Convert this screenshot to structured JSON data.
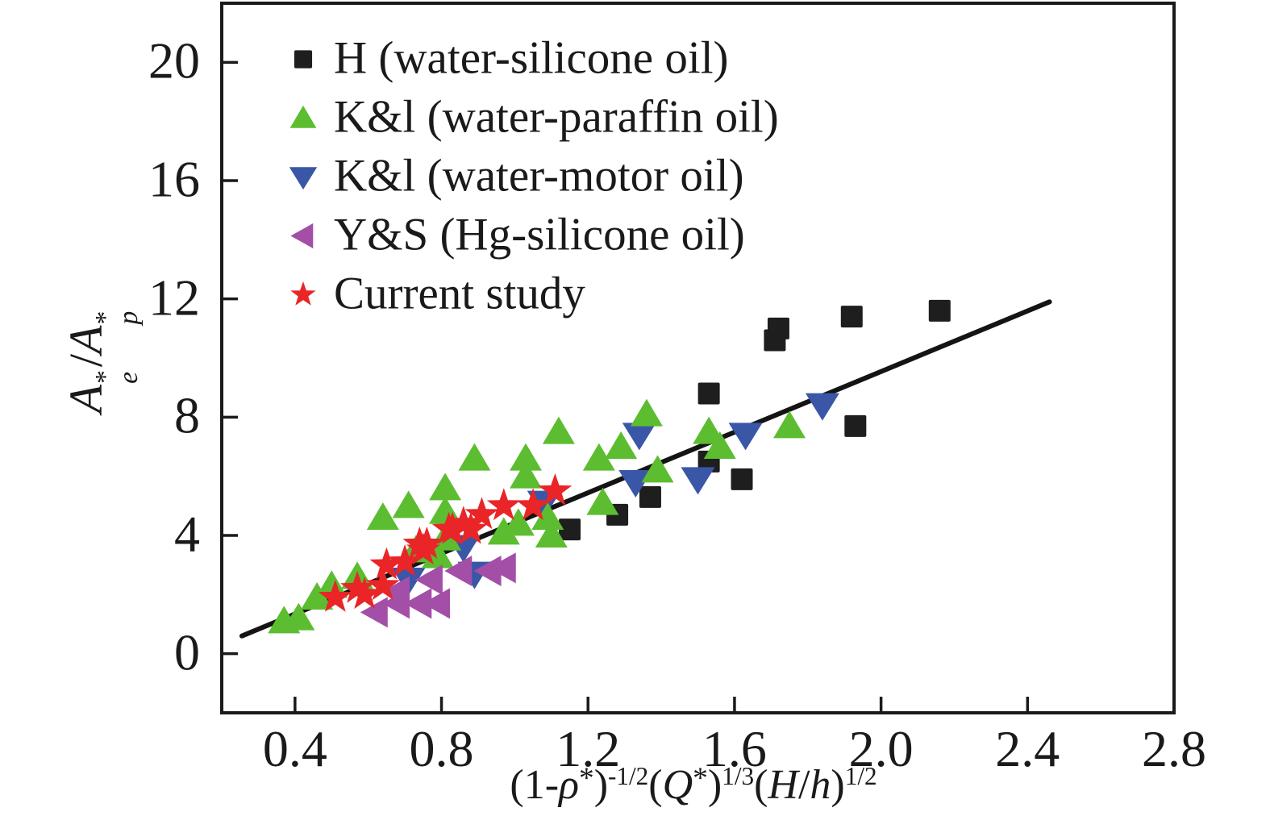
{
  "figure": {
    "background": "#ffffff",
    "axis_color": "#1a1a1a",
    "frame": true
  },
  "chart_data": {
    "type": "scatter",
    "title": "",
    "xlabel": "(1-ρ*)^(-1/2) (Q*)^(1/3) (H/h)^(1/2)",
    "ylabel": "A*e/A*p",
    "xlim": [
      0.2,
      2.8
    ],
    "ylim": [
      -2,
      22
    ],
    "grid": false,
    "legend_position": "upper-left-inside",
    "x_ticks": {
      "values": [
        0.4,
        0.8,
        1.2,
        1.6,
        2.0,
        2.4,
        2.8
      ],
      "labels": [
        "0.4",
        "0.8",
        "1.2",
        "1.6",
        "2.0",
        "2.4",
        "2.8"
      ]
    },
    "y_ticks": {
      "values": [
        0,
        4,
        8,
        12,
        16,
        20
      ],
      "labels": [
        "0",
        "4",
        "8",
        "12",
        "16",
        "20"
      ]
    },
    "series": [
      {
        "name": "H (water-silicone oil)",
        "marker": "square",
        "color": "#1e1e1e",
        "points": [
          [
            1.15,
            4.2
          ],
          [
            1.28,
            4.7
          ],
          [
            1.37,
            5.3
          ],
          [
            1.53,
            6.5
          ],
          [
            1.53,
            8.8
          ],
          [
            1.62,
            5.9
          ],
          [
            1.71,
            10.6
          ],
          [
            1.72,
            11.0
          ],
          [
            1.92,
            11.4
          ],
          [
            1.93,
            7.7
          ],
          [
            2.16,
            11.6
          ]
        ]
      },
      {
        "name": "K&l (water-paraffin oil)",
        "marker": "triangle-up",
        "color": "#5cbd30",
        "points": [
          [
            0.37,
            1.1
          ],
          [
            0.41,
            1.2
          ],
          [
            0.46,
            1.9
          ],
          [
            0.5,
            2.3
          ],
          [
            0.57,
            2.6
          ],
          [
            0.64,
            4.6
          ],
          [
            0.71,
            5.0
          ],
          [
            0.73,
            3.5
          ],
          [
            0.79,
            3.3
          ],
          [
            0.81,
            3.9
          ],
          [
            0.81,
            4.8
          ],
          [
            0.81,
            5.6
          ],
          [
            0.89,
            6.6
          ],
          [
            0.97,
            4.1
          ],
          [
            1.01,
            4.4
          ],
          [
            1.03,
            6.0
          ],
          [
            1.03,
            6.6
          ],
          [
            1.09,
            4.6
          ],
          [
            1.1,
            4.0
          ],
          [
            1.12,
            7.5
          ],
          [
            1.23,
            6.6
          ],
          [
            1.24,
            5.1
          ],
          [
            1.29,
            7.0
          ],
          [
            1.36,
            8.1
          ],
          [
            1.39,
            6.2
          ],
          [
            1.53,
            7.5
          ],
          [
            1.56,
            7.0
          ],
          [
            1.75,
            7.7
          ]
        ]
      },
      {
        "name": "K&l (water-motor oil)",
        "marker": "triangle-down",
        "color": "#3a57a7",
        "points": [
          [
            0.71,
            2.5
          ],
          [
            0.86,
            3.6
          ],
          [
            0.89,
            2.7
          ],
          [
            1.08,
            5.1
          ],
          [
            1.33,
            5.8
          ],
          [
            1.34,
            7.4
          ],
          [
            1.5,
            5.9
          ],
          [
            1.63,
            7.4
          ],
          [
            1.84,
            8.4
          ]
        ]
      },
      {
        "name": "Y&S (Hg-silicone oil)",
        "marker": "triangle-left",
        "color": "#a44fa7",
        "points": [
          [
            0.62,
            1.4
          ],
          [
            0.68,
            1.7
          ],
          [
            0.68,
            2.1
          ],
          [
            0.74,
            1.7
          ],
          [
            0.77,
            2.5
          ],
          [
            0.79,
            1.7
          ],
          [
            0.85,
            2.8
          ],
          [
            0.93,
            2.8
          ],
          [
            0.97,
            2.9
          ]
        ]
      },
      {
        "name": "Current study",
        "marker": "star",
        "color": "#e92528",
        "points": [
          [
            0.51,
            1.9
          ],
          [
            0.57,
            2.2
          ],
          [
            0.59,
            2.0
          ],
          [
            0.64,
            2.3
          ],
          [
            0.65,
            3.0
          ],
          [
            0.7,
            3.1
          ],
          [
            0.74,
            3.7
          ],
          [
            0.75,
            3.5
          ],
          [
            0.76,
            3.7
          ],
          [
            0.82,
            4.2
          ],
          [
            0.83,
            4.2
          ],
          [
            0.86,
            4.4
          ],
          [
            0.88,
            4.2
          ],
          [
            0.91,
            4.7
          ],
          [
            0.97,
            5.0
          ],
          [
            1.05,
            5.0
          ],
          [
            1.11,
            5.5
          ]
        ]
      }
    ],
    "fit_line": {
      "x1": 0.255,
      "y1": 0.6,
      "x2": 2.46,
      "y2": 11.9,
      "color": "#141414"
    }
  },
  "labels": {
    "y": {
      "A1": "A",
      "sup1": "*",
      "sub1": "e",
      "slash": "/",
      "A2": "A",
      "sup2": "*",
      "sub2": "p"
    },
    "x": {
      "p1": "(1-",
      "rho": "ρ",
      "s1": "*",
      "p2": ")",
      "e1": "-1/2",
      "p3": "(",
      "Q": "Q",
      "s2": "*",
      "p4": ")",
      "e2": "1/3",
      "p5": "(",
      "H": "H",
      "sl": "/",
      "h": "h",
      "p6": ")",
      "e3": "1/2"
    }
  }
}
